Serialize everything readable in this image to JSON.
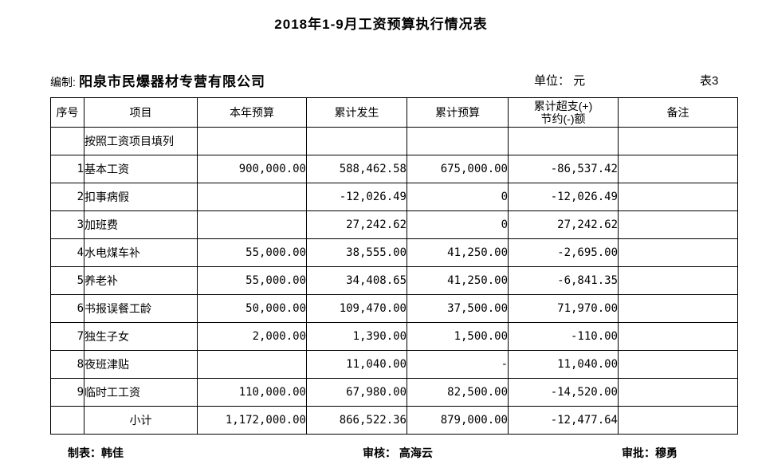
{
  "title": "2018年1-9月工资预算执行情况表",
  "meta": {
    "prepared_label": "编制:",
    "prepared_value": "阳泉市民爆器材专营有限公司",
    "unit_text": "单位： 元",
    "table_no": "表3"
  },
  "table": {
    "headers": [
      "序号",
      "项目",
      "本年预算",
      "累计发生",
      "累计预算",
      "累计超支(+)\n节约(-)额",
      "备注"
    ],
    "rows": [
      {
        "no": "",
        "item": "按照工资项目填列",
        "budget": "",
        "actual": "",
        "cum_budget": "",
        "diff": "",
        "note": ""
      },
      {
        "no": "1",
        "item": "基本工资",
        "budget": "900,000.00",
        "actual": "588,462.58",
        "cum_budget": "675,000.00",
        "diff": "-86,537.42",
        "note": ""
      },
      {
        "no": "2",
        "item": "扣事病假",
        "budget": "",
        "actual": "-12,026.49",
        "cum_budget": "0",
        "diff": "-12,026.49",
        "note": ""
      },
      {
        "no": "3",
        "item": "加班费",
        "budget": "",
        "actual": "27,242.62",
        "cum_budget": "0",
        "diff": "27,242.62",
        "note": ""
      },
      {
        "no": "4",
        "item": "水电煤车补",
        "budget": "55,000.00",
        "actual": "38,555.00",
        "cum_budget": "41,250.00",
        "diff": "-2,695.00",
        "note": ""
      },
      {
        "no": "5",
        "item": "养老补",
        "budget": "55,000.00",
        "actual": "34,408.65",
        "cum_budget": "41,250.00",
        "diff": "-6,841.35",
        "note": ""
      },
      {
        "no": "6",
        "item": "书报误餐工龄",
        "budget": "50,000.00",
        "actual": "109,470.00",
        "cum_budget": "37,500.00",
        "diff": "71,970.00",
        "note": ""
      },
      {
        "no": "7",
        "item": "独生子女",
        "budget": "2,000.00",
        "actual": "1,390.00",
        "cum_budget": "1,500.00",
        "diff": "-110.00",
        "note": ""
      },
      {
        "no": "8",
        "item": "夜班津贴",
        "budget": "",
        "actual": "11,040.00",
        "cum_budget": "-",
        "diff": "11,040.00",
        "note": ""
      },
      {
        "no": "9",
        "item": "临时工工资",
        "budget": "110,000.00",
        "actual": "67,980.00",
        "cum_budget": "82,500.00",
        "diff": "-14,520.00",
        "note": ""
      },
      {
        "no": "",
        "item": "小计",
        "item_align": "center",
        "budget": "1,172,000.00",
        "actual": "866,522.36",
        "cum_budget": "879,000.00",
        "diff": "-12,477.64",
        "note": ""
      }
    ]
  },
  "footer": {
    "maker": "制表：韩佳",
    "reviewer": "审核： 高海云",
    "approver": "审批：穆勇"
  }
}
